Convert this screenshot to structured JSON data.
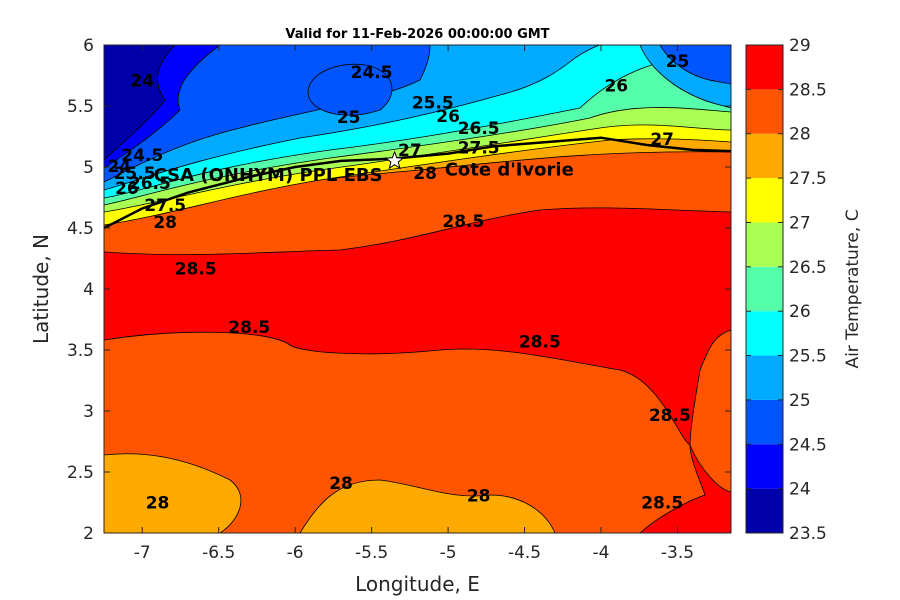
{
  "title": "Valid for 11-Feb-2026 00:00:00 GMT",
  "chart_data": {
    "type": "heatmap",
    "subtype": "filled contour",
    "title": "Valid for 11-Feb-2026 00:00:00 GMT",
    "xlabel": "Longitude, E",
    "ylabel": "Latitude, N",
    "colorbar_label": "Air Temperature, C",
    "xlim": [
      -7.25,
      -3.15
    ],
    "ylim": [
      2,
      6
    ],
    "xticks": [
      "-7",
      "-6.5",
      "-6",
      "-5.5",
      "-5",
      "-4.5",
      "-4",
      "-3.5"
    ],
    "yticks": [
      "2",
      "2.5",
      "3",
      "3.5",
      "4",
      "4.5",
      "5",
      "5.5",
      "6"
    ],
    "colorbar_ticks": [
      "23.5",
      "24",
      "24.5",
      "25",
      "25.5",
      "26",
      "26.5",
      "27",
      "27.5",
      "28",
      "28.5",
      "29"
    ],
    "levels": [
      23.5,
      24,
      24.5,
      25,
      25.5,
      26,
      26.5,
      27,
      27.5,
      28,
      28.5,
      29
    ],
    "colors": [
      "#0000aa",
      "#0000ff",
      "#0055ff",
      "#00aaff",
      "#00ffff",
      "#55ffaa",
      "#aaff55",
      "#ffff00",
      "#ffaa00",
      "#ff5500",
      "#ff0000",
      "#aa0000"
    ],
    "contour_labels": [
      {
        "text": "24",
        "lon": -7.0,
        "lat": 5.66
      },
      {
        "text": "24.5",
        "lon": -5.5,
        "lat": 5.73
      },
      {
        "text": "25",
        "lon": -3.5,
        "lat": 5.82
      },
      {
        "text": "26",
        "lon": -3.9,
        "lat": 5.62
      },
      {
        "text": "25.5",
        "lon": -5.1,
        "lat": 5.48
      },
      {
        "text": "26",
        "lon": -5.0,
        "lat": 5.37
      },
      {
        "text": "25",
        "lon": -5.65,
        "lat": 5.36
      },
      {
        "text": "26.5",
        "lon": -4.8,
        "lat": 5.27
      },
      {
        "text": "27",
        "lon": -3.6,
        "lat": 5.18
      },
      {
        "text": "27.5",
        "lon": -4.8,
        "lat": 5.11
      },
      {
        "text": "27",
        "lon": -5.25,
        "lat": 5.09
      },
      {
        "text": "24.5",
        "lon": -7.0,
        "lat": 5.05
      },
      {
        "text": "24",
        "lon": -7.15,
        "lat": 4.96
      },
      {
        "text": "25.5",
        "lon": -7.05,
        "lat": 4.9
      },
      {
        "text": "26.5",
        "lon": -6.95,
        "lat": 4.82
      },
      {
        "text": "26",
        "lon": -7.1,
        "lat": 4.78
      },
      {
        "text": "27.5",
        "lon": -6.85,
        "lat": 4.64
      },
      {
        "text": "28",
        "lon": -5.15,
        "lat": 4.9
      },
      {
        "text": "28",
        "lon": -6.85,
        "lat": 4.5
      },
      {
        "text": "28.5",
        "lon": -4.9,
        "lat": 4.51
      },
      {
        "text": "28.5",
        "lon": -6.65,
        "lat": 4.12
      },
      {
        "text": "28.5",
        "lon": -6.3,
        "lat": 3.64
      },
      {
        "text": "28.5",
        "lon": -4.4,
        "lat": 3.52
      },
      {
        "text": "28.5",
        "lon": -3.55,
        "lat": 2.92
      },
      {
        "text": "28",
        "lon": -5.7,
        "lat": 2.36
      },
      {
        "text": "28",
        "lon": -4.8,
        "lat": 2.26
      },
      {
        "text": "28",
        "lon": -6.9,
        "lat": 2.2
      },
      {
        "text": "28.5",
        "lon": -3.6,
        "lat": 2.2
      }
    ],
    "site": {
      "name": "CSA (ONHYM) PPL EBS",
      "lon": -5.35,
      "lat": 5.05
    },
    "country_label": {
      "text": "Cote d'Ivorie",
      "lon": -4.6,
      "lat": 4.93
    },
    "coastline": [
      [
        -7.25,
        4.5
      ],
      [
        -7.0,
        4.66
      ],
      [
        -6.7,
        4.79
      ],
      [
        -6.3,
        4.92
      ],
      [
        -6.0,
        5.0
      ],
      [
        -5.7,
        5.05
      ],
      [
        -5.35,
        5.07
      ],
      [
        -5.0,
        5.11
      ],
      [
        -4.7,
        5.17
      ],
      [
        -4.4,
        5.2
      ],
      [
        -4.0,
        5.24
      ],
      [
        -3.7,
        5.18
      ],
      [
        -3.4,
        5.14
      ],
      [
        -3.15,
        5.13
      ]
    ]
  }
}
